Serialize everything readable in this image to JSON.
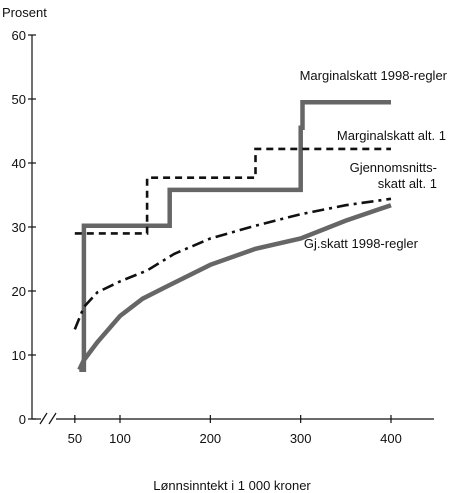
{
  "chart_data": {
    "type": "line",
    "title": "",
    "ylabel": "Prosent",
    "xlabel": "Lønnsinntekt i 1 000 kroner",
    "xlim": [
      0,
      450
    ],
    "ylim": [
      0,
      60
    ],
    "x_axis_break": true,
    "xticks": [
      50,
      100,
      200,
      300,
      400
    ],
    "yticks": [
      0,
      10,
      20,
      30,
      40,
      50,
      60
    ],
    "grid": false,
    "legend": "none (series labelled directly on chart)",
    "series": [
      {
        "name": "Marginalskatt 1998-regler",
        "style": "solid-thick",
        "color": "#666666",
        "x": [
          55,
          60,
          60,
          60,
          155,
          155,
          300,
          300,
          302,
          302,
          400
        ],
        "y": [
          7.7,
          7.7,
          30.2,
          30.2,
          30.2,
          35.8,
          35.8,
          45.5,
          45.5,
          49.5,
          49.5
        ]
      },
      {
        "name": "Marginalskatt alt. 1",
        "style": "dashed",
        "color": "#111111",
        "x": [
          50,
          130,
          130,
          250,
          250,
          400
        ],
        "y": [
          29.0,
          29.0,
          37.7,
          37.7,
          42.2,
          42.2
        ]
      },
      {
        "name": "Gjennomsnitts-skatt alt. 1",
        "label_lines": [
          "Gjennomsnitts-",
          "skatt alt. 1"
        ],
        "style": "dash-dot",
        "color": "#111111",
        "x": [
          50,
          60,
          75,
          100,
          130,
          160,
          200,
          250,
          300,
          350,
          400
        ],
        "y": [
          14.0,
          17.5,
          19.8,
          21.5,
          23.2,
          25.8,
          28.2,
          30.2,
          32.0,
          33.4,
          34.4
        ]
      },
      {
        "name": "Gj.skatt 1998-regler",
        "style": "solid-thick",
        "color": "#666666",
        "x": [
          55,
          60,
          75,
          100,
          125,
          150,
          200,
          250,
          300,
          350,
          400
        ],
        "y": [
          7.7,
          9.2,
          12.0,
          16.1,
          18.8,
          20.6,
          24.1,
          26.6,
          28.2,
          31.0,
          33.4
        ]
      }
    ]
  }
}
